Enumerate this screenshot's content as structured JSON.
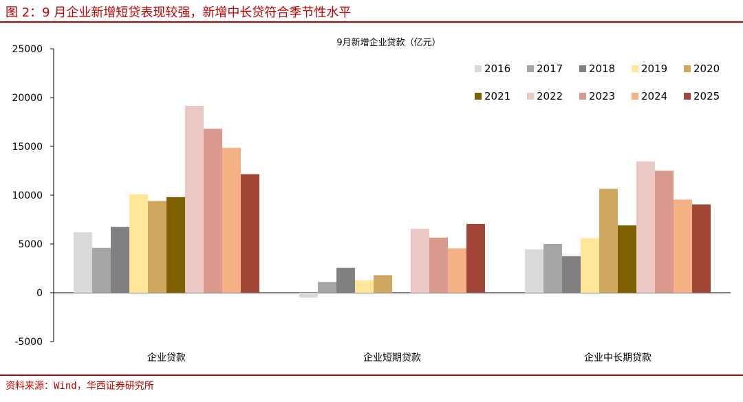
{
  "figure": {
    "title": "图 2：9 月企业新增短贷表现较强，新增中长贷符合季节性水平",
    "source": "资料来源：Wind，华西证券研究所"
  },
  "chart_data": {
    "type": "bar",
    "title": "9月新增企业贷款（亿元）",
    "xlabel": "",
    "ylabel": "",
    "ylim": [
      -5000,
      25000
    ],
    "yticks": [
      -5000,
      0,
      5000,
      10000,
      15000,
      20000,
      25000
    ],
    "grid": false,
    "legend_position": "top-right",
    "categories": [
      "企业贷款",
      "企业短期贷款",
      "企业中长期贷款"
    ],
    "series": [
      {
        "name": "2016",
        "color": "#d9d9d9",
        "values": [
          6200,
          -500,
          4450
        ]
      },
      {
        "name": "2017",
        "color": "#a6a6a6",
        "values": [
          4600,
          1100,
          5000
        ]
      },
      {
        "name": "2018",
        "color": "#808080",
        "values": [
          6750,
          2550,
          3750
        ]
      },
      {
        "name": "2019",
        "color": "#ffe699",
        "values": [
          10100,
          1250,
          5600
        ]
      },
      {
        "name": "2020",
        "color": "#cfa75f",
        "values": [
          9400,
          1800,
          10650
        ]
      },
      {
        "name": "2021",
        "color": "#7f6000",
        "values": [
          9800,
          0,
          6900
        ]
      },
      {
        "name": "2022",
        "color": "#ebc8c3",
        "values": [
          19150,
          6550,
          13450
        ]
      },
      {
        "name": "2023",
        "color": "#d9998c",
        "values": [
          16800,
          5650,
          12500
        ]
      },
      {
        "name": "2024",
        "color": "#f4b183",
        "values": [
          14850,
          4550,
          9550
        ]
      },
      {
        "name": "2025",
        "color": "#a34537",
        "values": [
          12150,
          7050,
          9050
        ]
      }
    ]
  }
}
